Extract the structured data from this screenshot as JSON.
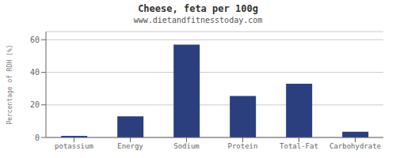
{
  "chart_data": {
    "type": "bar",
    "title": "Cheese, feta per 100g",
    "subtitle": "www.dietandfitnesstoday.com",
    "categories": [
      "potassium",
      "Energy",
      "Sodium",
      "Protein",
      "Total-Fat",
      "Carbohydrate"
    ],
    "values": [
      1,
      13,
      57,
      25.5,
      33,
      3.5
    ],
    "color": "#2b3f7e",
    "ylabel": "Percentage of RDH (%)",
    "ylim": [
      0,
      65
    ],
    "yticks": [
      0,
      20,
      40,
      60
    ],
    "grid": true
  }
}
